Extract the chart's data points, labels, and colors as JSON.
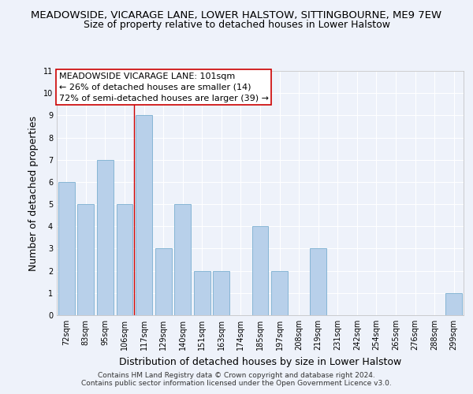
{
  "title1": "MEADOWSIDE, VICARAGE LANE, LOWER HALSTOW, SITTINGBOURNE, ME9 7EW",
  "title2": "Size of property relative to detached houses in Lower Halstow",
  "xlabel": "Distribution of detached houses by size in Lower Halstow",
  "ylabel": "Number of detached properties",
  "bin_labels": [
    "72sqm",
    "83sqm",
    "95sqm",
    "106sqm",
    "117sqm",
    "129sqm",
    "140sqm",
    "151sqm",
    "163sqm",
    "174sqm",
    "185sqm",
    "197sqm",
    "208sqm",
    "219sqm",
    "231sqm",
    "242sqm",
    "254sqm",
    "265sqm",
    "276sqm",
    "288sqm",
    "299sqm"
  ],
  "bar_heights": [
    6,
    5,
    7,
    5,
    9,
    3,
    5,
    2,
    2,
    0,
    4,
    2,
    0,
    3,
    0,
    0,
    0,
    0,
    0,
    0,
    1
  ],
  "bar_color": "#b8d0ea",
  "bar_edge_color": "#7aaed0",
  "vline_x": 3.5,
  "vline_color": "#cc0000",
  "annotation_line1": "MEADOWSIDE VICARAGE LANE: 101sqm",
  "annotation_line2": "← 26% of detached houses are smaller (14)",
  "annotation_line3": "72% of semi-detached houses are larger (39) →",
  "ylim": [
    0,
    11
  ],
  "yticks": [
    0,
    1,
    2,
    3,
    4,
    5,
    6,
    7,
    8,
    9,
    10,
    11
  ],
  "footer1": "Contains HM Land Registry data © Crown copyright and database right 2024.",
  "footer2": "Contains public sector information licensed under the Open Government Licence v3.0.",
  "background_color": "#eef2fa",
  "grid_color": "#ffffff",
  "title1_fontsize": 9.5,
  "title2_fontsize": 9,
  "label_fontsize": 9,
  "tick_fontsize": 7,
  "annotation_fontsize": 8,
  "footer_fontsize": 6.5
}
